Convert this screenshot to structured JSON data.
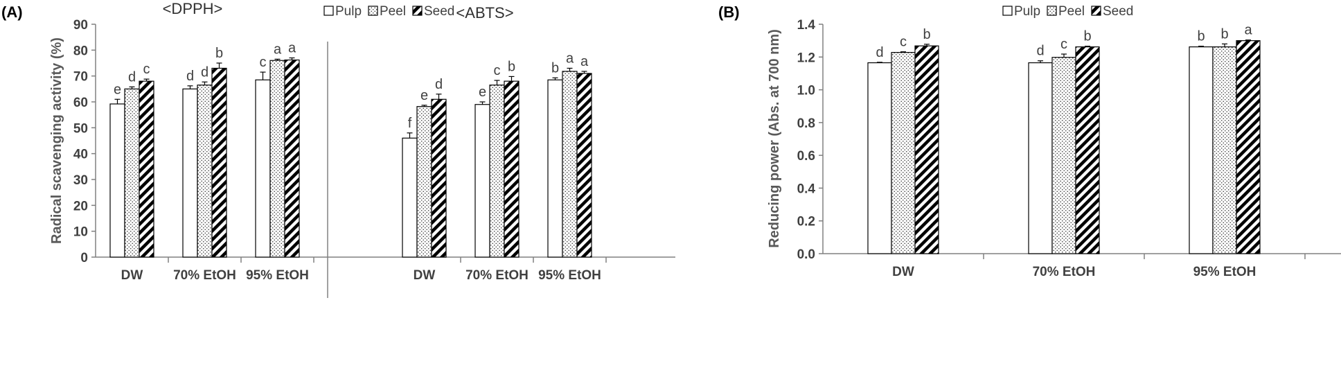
{
  "chart_data": [
    {
      "id": "A",
      "type": "bar",
      "panel_label": "(A)",
      "ylabel": "Radical scavenging activity (%)",
      "ylim": [
        0,
        90
      ],
      "yticks": [
        "0",
        "10",
        "20",
        "30",
        "40",
        "50",
        "60",
        "70",
        "80",
        "90"
      ],
      "ytick_values": [
        0,
        10,
        20,
        30,
        40,
        50,
        60,
        70,
        80,
        90
      ],
      "legend": {
        "placement": "top-center",
        "entries": [
          "Pulp",
          "Peel",
          "Seed"
        ]
      },
      "groups": [
        {
          "title": "<DPPH>",
          "categories": [
            "DW",
            "70% EtOH",
            "95% EtOH"
          ],
          "series": [
            {
              "name": "Pulp",
              "values": [
                59.2,
                65.0,
                68.5
              ],
              "errors": [
                1.8,
                1.2,
                3.0
              ],
              "labels": [
                "e",
                "d",
                "c"
              ]
            },
            {
              "name": "Peel",
              "values": [
                65.0,
                66.5,
                76.0
              ],
              "errors": [
                0.8,
                1.2,
                0.5
              ],
              "labels": [
                "d",
                "d",
                "a"
              ]
            },
            {
              "name": "Seed",
              "values": [
                68.0,
                73.0,
                76.2
              ],
              "errors": [
                0.8,
                2.0,
                0.8
              ],
              "labels": [
                "c",
                "b",
                "a"
              ]
            }
          ]
        },
        {
          "title": "<ABTS>",
          "categories": [
            "DW",
            "70% EtOH",
            "95% EtOH"
          ],
          "series": [
            {
              "name": "Pulp",
              "values": [
                46.0,
                59.0,
                68.5
              ],
              "errors": [
                2.0,
                1.0,
                0.8
              ],
              "labels": [
                "f",
                "e",
                "b"
              ]
            },
            {
              "name": "Peel",
              "values": [
                58.2,
                66.5,
                71.8
              ],
              "errors": [
                0.5,
                1.8,
                1.2
              ],
              "labels": [
                "e",
                "c",
                "a"
              ]
            },
            {
              "name": "Seed",
              "values": [
                61.0,
                68.0,
                71.0
              ],
              "errors": [
                2.0,
                1.8,
                0.8
              ],
              "labels": [
                "d",
                "b",
                "a"
              ]
            }
          ]
        }
      ]
    },
    {
      "id": "B",
      "type": "bar",
      "panel_label": "(B)",
      "ylabel": "Reducing power (Abs. at 700 nm)",
      "ylim": [
        0,
        1.4
      ],
      "yticks": [
        "0.0",
        "0.2",
        "0.4",
        "0.6",
        "0.8",
        "1.0",
        "1.2",
        "1.4"
      ],
      "ytick_values": [
        0,
        0.2,
        0.4,
        0.6,
        0.8,
        1.0,
        1.2,
        1.4
      ],
      "legend": {
        "placement": "top-center",
        "entries": [
          "Pulp",
          "Peel",
          "Seed"
        ]
      },
      "groups": [
        {
          "title": "",
          "categories": [
            "DW",
            "70% EtOH",
            "95% EtOH"
          ],
          "series": [
            {
              "name": "Pulp",
              "values": [
                1.165,
                1.165,
                1.262
              ],
              "errors": [
                0.003,
                0.012,
                0.004
              ],
              "labels": [
                "d",
                "d",
                "b"
              ]
            },
            {
              "name": "Peel",
              "values": [
                1.228,
                1.198,
                1.262
              ],
              "errors": [
                0.004,
                0.02,
                0.018
              ],
              "labels": [
                "c",
                "c",
                "b"
              ]
            },
            {
              "name": "Seed",
              "values": [
                1.268,
                1.262,
                1.3
              ],
              "errors": [
                0.01,
                0.004,
                0.004
              ],
              "labels": [
                "b",
                "b",
                "a"
              ]
            }
          ]
        }
      ]
    }
  ]
}
